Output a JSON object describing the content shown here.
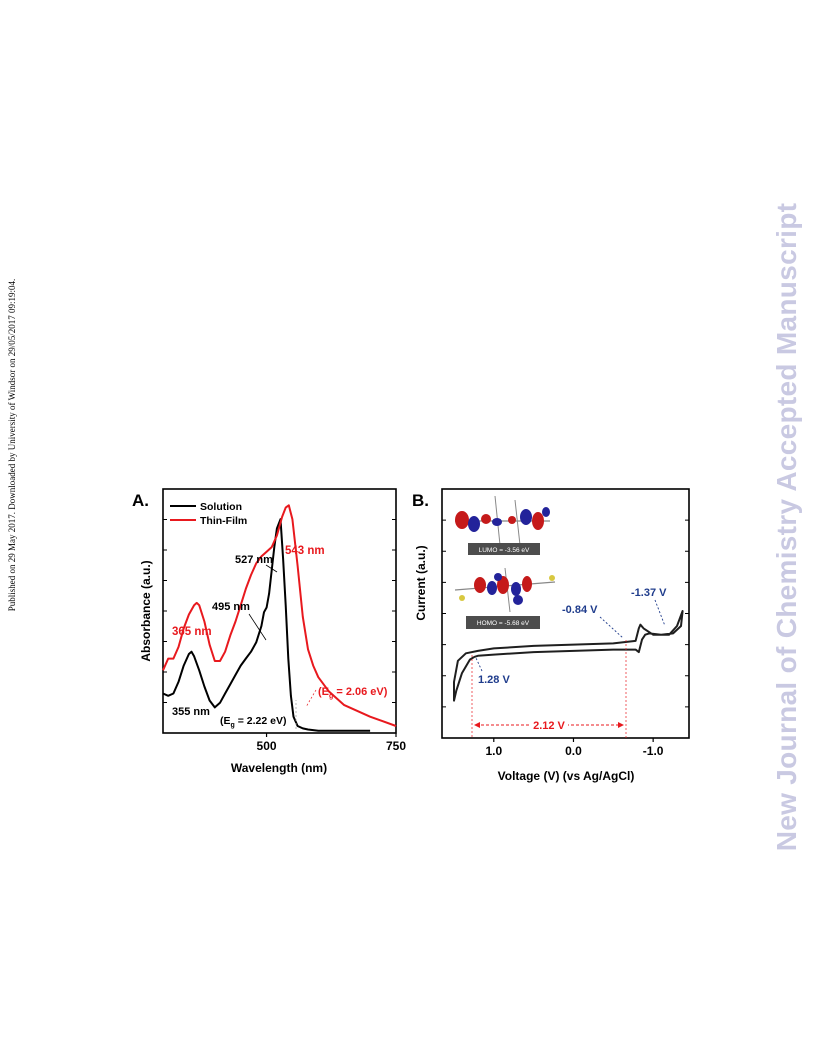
{
  "page": {
    "left_note": "Published on 29 May 2017. Downloaded by University of Windsor on 29/05/2017 09:19:04.",
    "watermark": "New Journal of Chemistry Accepted Manuscript"
  },
  "colors": {
    "solution": "#000000",
    "thin_film": "#e8191e",
    "cv": "#1f1f1f",
    "annot_blue": "#1f3c8c",
    "gap_red": "#e8191e"
  },
  "chart_data": [
    {
      "type": "line",
      "panel_label": "A.",
      "xlabel": "Wavelength (nm)",
      "ylabel": "Absorbance (a.u.)",
      "xlim": [
        300,
        750
      ],
      "ylim": [
        0,
        1.05
      ],
      "xticks": [
        500,
        750
      ],
      "legend": {
        "placement": "top-left",
        "entries": [
          "Solution",
          "Thin-Film"
        ]
      },
      "series": [
        {
          "name": "Solution",
          "color": "#000000",
          "x": [
            300,
            310,
            320,
            330,
            340,
            350,
            355,
            360,
            370,
            380,
            390,
            400,
            410,
            420,
            430,
            440,
            450,
            460,
            470,
            480,
            490,
            495,
            500,
            505,
            510,
            515,
            520,
            527,
            532,
            537,
            542,
            547,
            552,
            560,
            570,
            580,
            600,
            620,
            650,
            700
          ],
          "y": [
            0.17,
            0.16,
            0.17,
            0.22,
            0.29,
            0.34,
            0.35,
            0.33,
            0.27,
            0.2,
            0.14,
            0.11,
            0.13,
            0.17,
            0.21,
            0.25,
            0.29,
            0.32,
            0.35,
            0.39,
            0.46,
            0.52,
            0.54,
            0.6,
            0.7,
            0.8,
            0.88,
            0.92,
            0.75,
            0.55,
            0.32,
            0.16,
            0.07,
            0.03,
            0.02,
            0.015,
            0.01,
            0.01,
            0.01,
            0.01
          ]
        },
        {
          "name": "Thin-Film",
          "color": "#e8191e",
          "x": [
            300,
            310,
            320,
            330,
            340,
            350,
            360,
            365,
            370,
            380,
            390,
            400,
            410,
            420,
            430,
            440,
            450,
            460,
            470,
            480,
            490,
            500,
            510,
            520,
            530,
            537,
            543,
            550,
            560,
            570,
            580,
            590,
            600,
            620,
            650,
            700,
            750
          ],
          "y": [
            0.27,
            0.32,
            0.32,
            0.37,
            0.45,
            0.51,
            0.55,
            0.56,
            0.55,
            0.48,
            0.38,
            0.31,
            0.31,
            0.35,
            0.42,
            0.48,
            0.55,
            0.62,
            0.68,
            0.73,
            0.76,
            0.78,
            0.8,
            0.85,
            0.93,
            0.97,
            0.98,
            0.92,
            0.72,
            0.5,
            0.36,
            0.29,
            0.24,
            0.18,
            0.12,
            0.07,
            0.03
          ]
        }
      ],
      "annotations": [
        "543 nm",
        "527 nm",
        "495 nm",
        "365 nm",
        "355 nm",
        "(E",
        "g",
        " = 2.22 eV)",
        "(E",
        "g",
        " = 2.06 eV)"
      ]
    },
    {
      "type": "line",
      "panel_label": "B.",
      "xlabel": "Voltage (V) (vs Ag/AgCl)",
      "ylabel": "Current (a.u.)",
      "xlim": [
        1.65,
        -1.45
      ],
      "ylim": [
        -1.0,
        1.0
      ],
      "xticks": [
        1.0,
        0.0,
        -1.0
      ],
      "xtick_labels": [
        "1.0",
        "0.0",
        "-1.0"
      ],
      "series": [
        {
          "name": "",
          "color": "#1f1f1f",
          "x": [
            1.25,
            1.3,
            1.4,
            1.47,
            1.5,
            1.5,
            1.45,
            1.35,
            1.2,
            1.0,
            0.5,
            0.0,
            -0.5,
            -0.78,
            -0.82,
            -0.84,
            -0.88,
            -1.0,
            -1.2,
            -1.3,
            -1.37,
            -1.35,
            -1.25,
            -1.1,
            -0.95,
            -0.9,
            -0.86,
            -0.82,
            -0.78,
            -0.5,
            0.0,
            0.5,
            1.0,
            1.2,
            1.25
          ],
          "y": [
            -0.35,
            -0.37,
            -0.48,
            -0.62,
            -0.7,
            -0.55,
            -0.38,
            -0.32,
            -0.3,
            -0.28,
            -0.26,
            -0.25,
            -0.24,
            -0.22,
            -0.12,
            -0.09,
            -0.12,
            -0.17,
            -0.17,
            -0.1,
            0.02,
            -0.1,
            -0.16,
            -0.17,
            -0.16,
            -0.17,
            -0.21,
            -0.31,
            -0.29,
            -0.29,
            -0.3,
            -0.31,
            -0.33,
            -0.34,
            -0.35
          ]
        }
      ],
      "annotations": [
        "-1.37 V",
        "-0.84 V",
        "1.28 V",
        "2.12 V"
      ],
      "insets": [
        "LUMO = -3.56 eV",
        "HOMO = -5.68 eV"
      ]
    }
  ]
}
